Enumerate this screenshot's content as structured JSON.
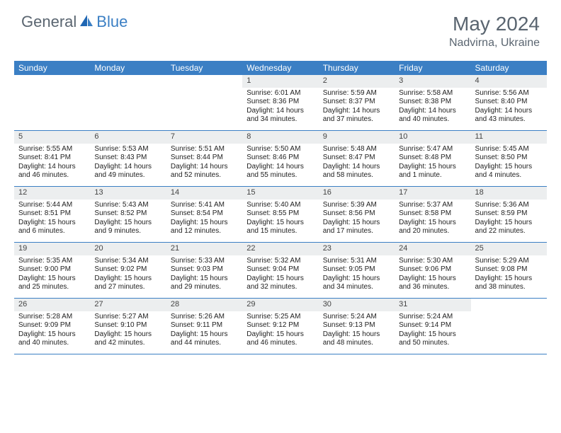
{
  "logo": {
    "text1": "General",
    "text2": "Blue"
  },
  "title": "May 2024",
  "location": "Nadvirna, Ukraine",
  "colors": {
    "header_bg": "#3b7fc4",
    "header_text": "#ffffff",
    "daynum_bg": "#eceeef",
    "text": "#222222",
    "logo_gray": "#5a6570",
    "logo_blue": "#3b7fc4",
    "border": "#3b7fc4",
    "background": "#ffffff"
  },
  "typography": {
    "title_fontsize": 28,
    "location_fontsize": 16,
    "dayheader_fontsize": 12,
    "daynum_fontsize": 11,
    "cell_fontsize": 10
  },
  "day_headers": [
    "Sunday",
    "Monday",
    "Tuesday",
    "Wednesday",
    "Thursday",
    "Friday",
    "Saturday"
  ],
  "weeks": [
    [
      {
        "num": "",
        "sunrise": "",
        "sunset": "",
        "daylight": ""
      },
      {
        "num": "",
        "sunrise": "",
        "sunset": "",
        "daylight": ""
      },
      {
        "num": "",
        "sunrise": "",
        "sunset": "",
        "daylight": ""
      },
      {
        "num": "1",
        "sunrise": "Sunrise: 6:01 AM",
        "sunset": "Sunset: 8:36 PM",
        "daylight": "Daylight: 14 hours and 34 minutes."
      },
      {
        "num": "2",
        "sunrise": "Sunrise: 5:59 AM",
        "sunset": "Sunset: 8:37 PM",
        "daylight": "Daylight: 14 hours and 37 minutes."
      },
      {
        "num": "3",
        "sunrise": "Sunrise: 5:58 AM",
        "sunset": "Sunset: 8:38 PM",
        "daylight": "Daylight: 14 hours and 40 minutes."
      },
      {
        "num": "4",
        "sunrise": "Sunrise: 5:56 AM",
        "sunset": "Sunset: 8:40 PM",
        "daylight": "Daylight: 14 hours and 43 minutes."
      }
    ],
    [
      {
        "num": "5",
        "sunrise": "Sunrise: 5:55 AM",
        "sunset": "Sunset: 8:41 PM",
        "daylight": "Daylight: 14 hours and 46 minutes."
      },
      {
        "num": "6",
        "sunrise": "Sunrise: 5:53 AM",
        "sunset": "Sunset: 8:43 PM",
        "daylight": "Daylight: 14 hours and 49 minutes."
      },
      {
        "num": "7",
        "sunrise": "Sunrise: 5:51 AM",
        "sunset": "Sunset: 8:44 PM",
        "daylight": "Daylight: 14 hours and 52 minutes."
      },
      {
        "num": "8",
        "sunrise": "Sunrise: 5:50 AM",
        "sunset": "Sunset: 8:46 PM",
        "daylight": "Daylight: 14 hours and 55 minutes."
      },
      {
        "num": "9",
        "sunrise": "Sunrise: 5:48 AM",
        "sunset": "Sunset: 8:47 PM",
        "daylight": "Daylight: 14 hours and 58 minutes."
      },
      {
        "num": "10",
        "sunrise": "Sunrise: 5:47 AM",
        "sunset": "Sunset: 8:48 PM",
        "daylight": "Daylight: 15 hours and 1 minute."
      },
      {
        "num": "11",
        "sunrise": "Sunrise: 5:45 AM",
        "sunset": "Sunset: 8:50 PM",
        "daylight": "Daylight: 15 hours and 4 minutes."
      }
    ],
    [
      {
        "num": "12",
        "sunrise": "Sunrise: 5:44 AM",
        "sunset": "Sunset: 8:51 PM",
        "daylight": "Daylight: 15 hours and 6 minutes."
      },
      {
        "num": "13",
        "sunrise": "Sunrise: 5:43 AM",
        "sunset": "Sunset: 8:52 PM",
        "daylight": "Daylight: 15 hours and 9 minutes."
      },
      {
        "num": "14",
        "sunrise": "Sunrise: 5:41 AM",
        "sunset": "Sunset: 8:54 PM",
        "daylight": "Daylight: 15 hours and 12 minutes."
      },
      {
        "num": "15",
        "sunrise": "Sunrise: 5:40 AM",
        "sunset": "Sunset: 8:55 PM",
        "daylight": "Daylight: 15 hours and 15 minutes."
      },
      {
        "num": "16",
        "sunrise": "Sunrise: 5:39 AM",
        "sunset": "Sunset: 8:56 PM",
        "daylight": "Daylight: 15 hours and 17 minutes."
      },
      {
        "num": "17",
        "sunrise": "Sunrise: 5:37 AM",
        "sunset": "Sunset: 8:58 PM",
        "daylight": "Daylight: 15 hours and 20 minutes."
      },
      {
        "num": "18",
        "sunrise": "Sunrise: 5:36 AM",
        "sunset": "Sunset: 8:59 PM",
        "daylight": "Daylight: 15 hours and 22 minutes."
      }
    ],
    [
      {
        "num": "19",
        "sunrise": "Sunrise: 5:35 AM",
        "sunset": "Sunset: 9:00 PM",
        "daylight": "Daylight: 15 hours and 25 minutes."
      },
      {
        "num": "20",
        "sunrise": "Sunrise: 5:34 AM",
        "sunset": "Sunset: 9:02 PM",
        "daylight": "Daylight: 15 hours and 27 minutes."
      },
      {
        "num": "21",
        "sunrise": "Sunrise: 5:33 AM",
        "sunset": "Sunset: 9:03 PM",
        "daylight": "Daylight: 15 hours and 29 minutes."
      },
      {
        "num": "22",
        "sunrise": "Sunrise: 5:32 AM",
        "sunset": "Sunset: 9:04 PM",
        "daylight": "Daylight: 15 hours and 32 minutes."
      },
      {
        "num": "23",
        "sunrise": "Sunrise: 5:31 AM",
        "sunset": "Sunset: 9:05 PM",
        "daylight": "Daylight: 15 hours and 34 minutes."
      },
      {
        "num": "24",
        "sunrise": "Sunrise: 5:30 AM",
        "sunset": "Sunset: 9:06 PM",
        "daylight": "Daylight: 15 hours and 36 minutes."
      },
      {
        "num": "25",
        "sunrise": "Sunrise: 5:29 AM",
        "sunset": "Sunset: 9:08 PM",
        "daylight": "Daylight: 15 hours and 38 minutes."
      }
    ],
    [
      {
        "num": "26",
        "sunrise": "Sunrise: 5:28 AM",
        "sunset": "Sunset: 9:09 PM",
        "daylight": "Daylight: 15 hours and 40 minutes."
      },
      {
        "num": "27",
        "sunrise": "Sunrise: 5:27 AM",
        "sunset": "Sunset: 9:10 PM",
        "daylight": "Daylight: 15 hours and 42 minutes."
      },
      {
        "num": "28",
        "sunrise": "Sunrise: 5:26 AM",
        "sunset": "Sunset: 9:11 PM",
        "daylight": "Daylight: 15 hours and 44 minutes."
      },
      {
        "num": "29",
        "sunrise": "Sunrise: 5:25 AM",
        "sunset": "Sunset: 9:12 PM",
        "daylight": "Daylight: 15 hours and 46 minutes."
      },
      {
        "num": "30",
        "sunrise": "Sunrise: 5:24 AM",
        "sunset": "Sunset: 9:13 PM",
        "daylight": "Daylight: 15 hours and 48 minutes."
      },
      {
        "num": "31",
        "sunrise": "Sunrise: 5:24 AM",
        "sunset": "Sunset: 9:14 PM",
        "daylight": "Daylight: 15 hours and 50 minutes."
      },
      {
        "num": "",
        "sunrise": "",
        "sunset": "",
        "daylight": ""
      }
    ]
  ]
}
